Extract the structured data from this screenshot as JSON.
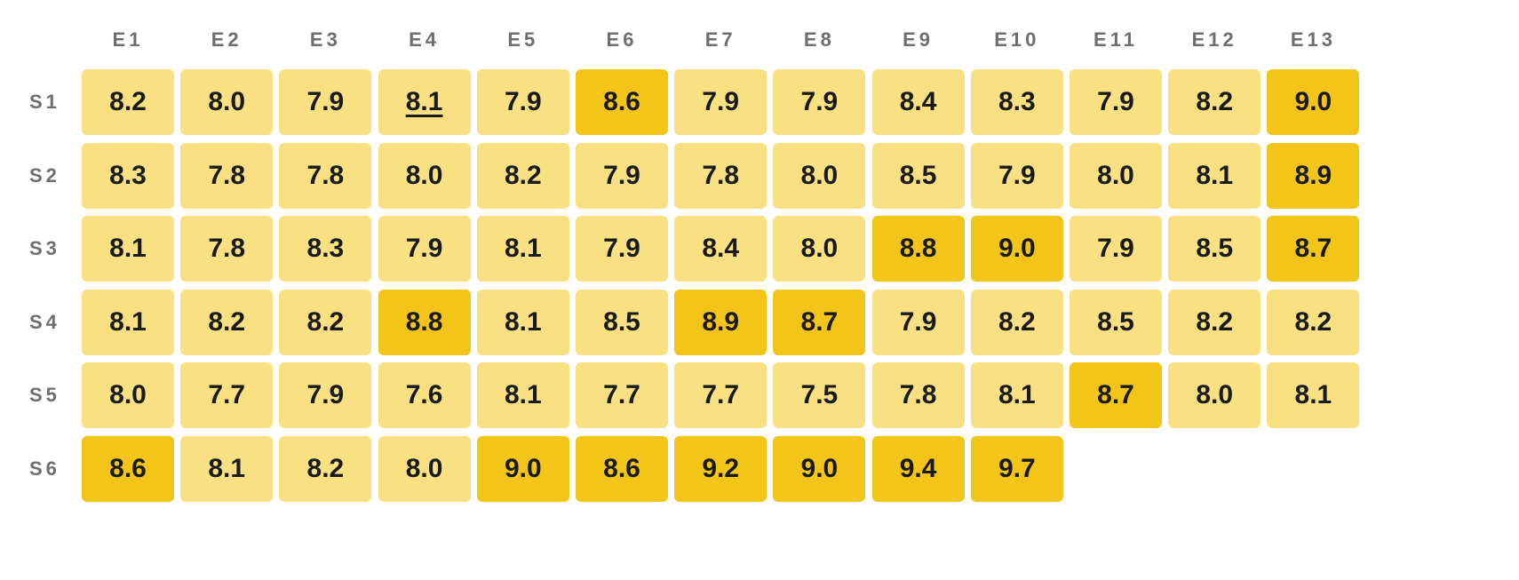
{
  "chart_data": {
    "type": "heatmap",
    "title": "",
    "xlabel": "",
    "ylabel": "",
    "columns": [
      "E1",
      "E2",
      "E3",
      "E4",
      "E5",
      "E6",
      "E7",
      "E8",
      "E9",
      "E10",
      "E11",
      "E12",
      "E13"
    ],
    "rows": [
      "S1",
      "S2",
      "S3",
      "S4",
      "S5",
      "S6"
    ],
    "values": [
      [
        "8.2",
        "8.0",
        "7.9",
        "8.1",
        "7.9",
        "8.6",
        "7.9",
        "7.9",
        "8.4",
        "8.3",
        "7.9",
        "8.2",
        "9.0"
      ],
      [
        "8.3",
        "7.8",
        "7.8",
        "8.0",
        "8.2",
        "7.9",
        "7.8",
        "8.0",
        "8.5",
        "7.9",
        "8.0",
        "8.1",
        "8.9"
      ],
      [
        "8.1",
        "7.8",
        "8.3",
        "7.9",
        "8.1",
        "7.9",
        "8.4",
        "8.0",
        "8.8",
        "9.0",
        "7.9",
        "8.5",
        "8.7"
      ],
      [
        "8.1",
        "8.2",
        "8.2",
        "8.8",
        "8.1",
        "8.5",
        "8.9",
        "8.7",
        "7.9",
        "8.2",
        "8.5",
        "8.2",
        "8.2"
      ],
      [
        "8.0",
        "7.7",
        "7.9",
        "7.6",
        "8.1",
        "7.7",
        "7.7",
        "7.5",
        "7.8",
        "8.1",
        "8.7",
        "8.0",
        "8.1"
      ],
      [
        "8.6",
        "8.1",
        "8.2",
        "8.0",
        "9.0",
        "8.6",
        "9.2",
        "9.0",
        "9.4",
        "9.7",
        null,
        null,
        null
      ]
    ],
    "highlight_threshold": 8.6,
    "colors": {
      "low": "#f9e082",
      "high": "#f4c519",
      "axis_label": "#6e6e6e",
      "value_text": "#1a1a1a"
    },
    "focused_cell": {
      "row": "S1",
      "column": "E4"
    }
  }
}
